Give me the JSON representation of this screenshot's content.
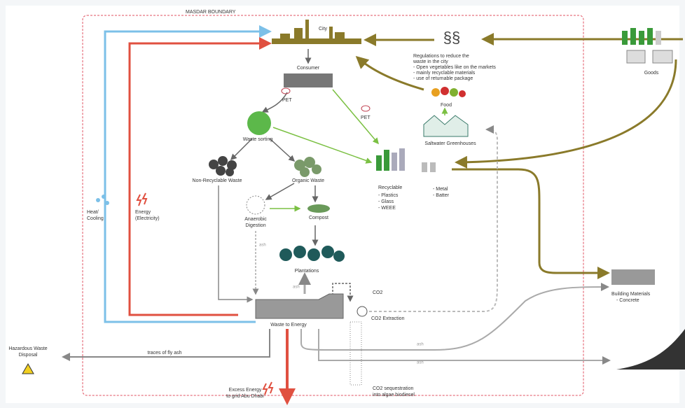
{
  "boundary": "MASDAR BOUNDARY",
  "city": "City",
  "regulations": {
    "symbol": "§§",
    "lines": [
      "Regulations to reduce the",
      "waste in the city",
      "- Open vegetables like on the markets",
      "- mainly recyclable materials",
      "- use of returnable package"
    ]
  },
  "goods": "Goods",
  "consumer": "Consumer",
  "pet": [
    "PET",
    "PET"
  ],
  "food": "Food",
  "waste_sorting": "Waste sorting",
  "greenhouses": "Saltwater Greenhouses",
  "non_recyclable": "Non-Recyclable Waste",
  "organic": "Organic Waste",
  "recyclable": {
    "title": "Recyclable",
    "items": [
      "- Plastics",
      "- Glass",
      "- WEEE",
      "- Metal",
      "- Batter"
    ]
  },
  "heat_cooling": [
    "Heat/",
    "Cooling"
  ],
  "energy": [
    "Energy",
    "(Electricity)"
  ],
  "anaerobic": [
    "Anaerobic",
    "Digestion"
  ],
  "compost": "Compost",
  "ash": [
    "ash",
    "ash",
    "ash",
    "ash"
  ],
  "plantations": "Plantations",
  "co2": "CO2",
  "co2_extraction": "CO2 Extraction",
  "waste_to_energy": "Waste to Energy",
  "building_materials": [
    "Building Materials",
    "- Concrete"
  ],
  "hazardous": [
    "Hazardous Waste",
    "Disposal"
  ],
  "fly_ash": "traces of fly ash",
  "excess_energy": [
    "Excess Energy",
    "to grid Abu Dhabi"
  ],
  "sequestration": [
    "CO2 sequestration",
    "into algae biodiesel"
  ]
}
